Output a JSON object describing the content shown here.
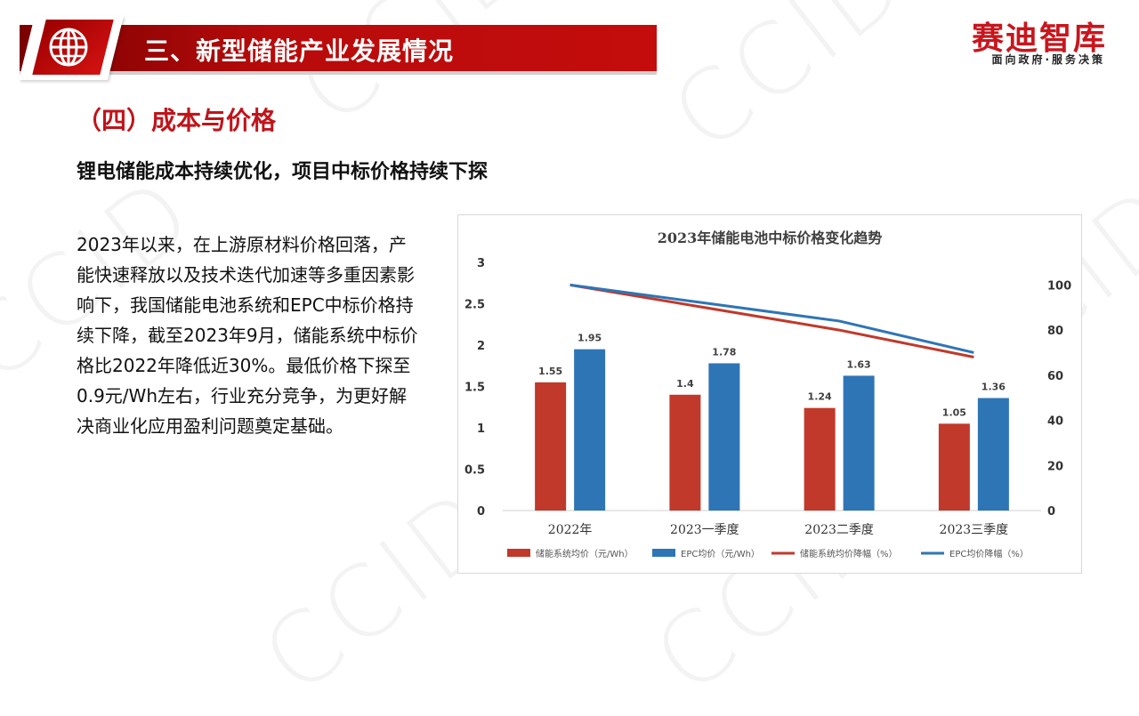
{
  "header": {
    "title": "三、新型储能产业发展情况",
    "logo_main": "赛迪智库",
    "logo_sub": "面向政府·服务决策",
    "watermark_text": "CCID",
    "banner_icon": "globe-icon",
    "accent_color": "#c0141a"
  },
  "section": {
    "title": "（四）成本与价格",
    "subtitle": "锂电储能成本持续优化，项目中标价格持续下探"
  },
  "body": {
    "paragraph": "2023年以来，在上游原材料价格回落，产能快速释放以及技术迭代加速等多重因素影响下，我国储能电池系统和EPC中标价格持续下降，截至2023年9月，储能系统中标价格比2022年降低近30%。最低价格下探至0.9元/Wh左右，行业充分竞争，为更好解决商业化应用盈利问题奠定基础。"
  },
  "chart_data": {
    "type": "bar",
    "title": "2023年储能电池中标价格变化趋势",
    "categories": [
      "2022年",
      "2023一季度",
      "2023二季度",
      "2023三季度"
    ],
    "series": [
      {
        "name": "储能系统均价（元/Wh）",
        "type": "bar",
        "axis": "left",
        "color": "#c0392b",
        "values": [
          1.55,
          1.4,
          1.24,
          1.05
        ],
        "labels": [
          "1.55",
          "1.4",
          "1.24",
          "1.05"
        ]
      },
      {
        "name": "EPC均价（元/Wh）",
        "type": "bar",
        "axis": "left",
        "color": "#2e75b6",
        "values": [
          1.95,
          1.78,
          1.63,
          1.36
        ],
        "labels": [
          "1.95",
          "1.78",
          "1.63",
          "1.36"
        ]
      },
      {
        "name": "储能系统均价降幅（%）",
        "type": "line",
        "axis": "right",
        "color": "#c0392b",
        "values": [
          100,
          90,
          80,
          68
        ]
      },
      {
        "name": "EPC均价降幅（%）",
        "type": "line",
        "axis": "right",
        "color": "#2e75b6",
        "values": [
          100,
          92,
          84,
          70
        ]
      }
    ],
    "y_left": {
      "min": 0,
      "max": 3,
      "ticks": [
        "0",
        "0.5",
        "1",
        "1.5",
        "2",
        "2.5",
        "3"
      ]
    },
    "y_right": {
      "min": 0,
      "max": 110,
      "ticks": [
        "0",
        "20",
        "40",
        "60",
        "80",
        "100"
      ]
    },
    "grid": false,
    "legend_position": "bottom"
  }
}
